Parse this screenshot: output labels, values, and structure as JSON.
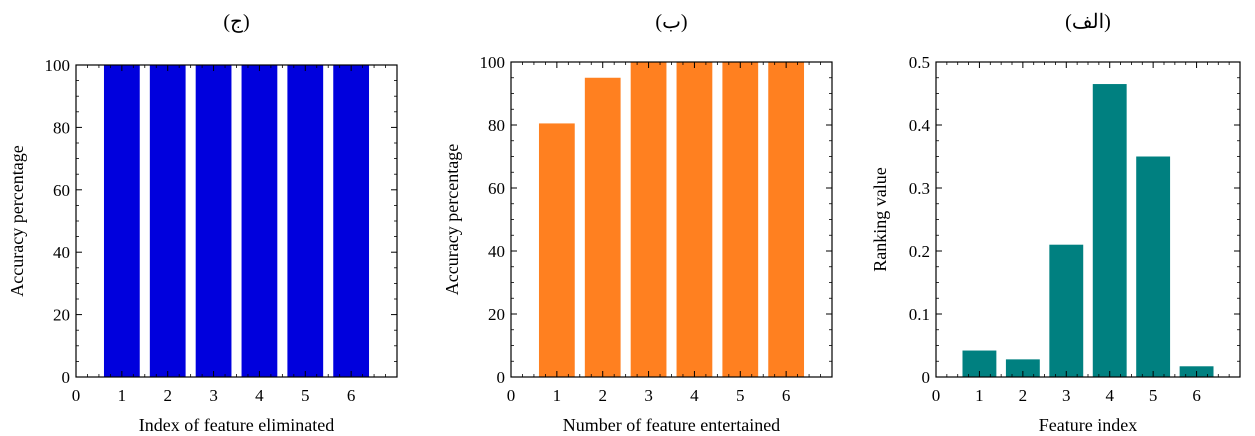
{
  "chart_data": [
    {
      "type": "bar",
      "title": "(ج)",
      "xlabel": "Index of feature eliminated",
      "ylabel": "Accuracy percentage",
      "categories": [
        1,
        2,
        3,
        4,
        5,
        6
      ],
      "values": [
        100,
        100,
        100,
        100,
        100,
        100
      ],
      "xlim": [
        0,
        7
      ],
      "ylim": [
        0,
        100
      ],
      "xticks": [
        0,
        1,
        2,
        3,
        4,
        5,
        6
      ],
      "yticks": [
        0,
        20,
        40,
        60,
        80,
        100
      ],
      "ytick_labels": [
        "0",
        "20",
        "40",
        "60",
        "80",
        "100"
      ],
      "bar_color": "#0000dd",
      "grid": false
    },
    {
      "type": "bar",
      "title": "(ب)",
      "xlabel": "Number of feature entertained",
      "ylabel": "Accuracy percentage",
      "categories": [
        1,
        2,
        3,
        4,
        5,
        6
      ],
      "values": [
        80.5,
        95,
        100,
        100,
        100,
        100
      ],
      "xlim": [
        0,
        7
      ],
      "ylim": [
        0,
        100
      ],
      "xticks": [
        0,
        1,
        2,
        3,
        4,
        5,
        6
      ],
      "yticks": [
        0,
        20,
        40,
        60,
        80,
        100
      ],
      "ytick_labels": [
        "0",
        "20",
        "40",
        "60",
        "80",
        "100"
      ],
      "bar_color": "#ff8020",
      "grid": false
    },
    {
      "type": "bar",
      "title": "(الف)",
      "xlabel": "Feature index",
      "ylabel": "Ranking value",
      "categories": [
        1,
        2,
        3,
        4,
        5,
        6
      ],
      "values": [
        0.042,
        0.028,
        0.21,
        0.465,
        0.35,
        0.017
      ],
      "xlim": [
        0,
        7
      ],
      "ylim": [
        0,
        0.5
      ],
      "xticks": [
        0,
        1,
        2,
        3,
        4,
        5,
        6
      ],
      "yticks": [
        0,
        0.1,
        0.2,
        0.3,
        0.4,
        0.5
      ],
      "ytick_labels": [
        "0",
        "0.1",
        "0.2",
        "0.3",
        "0.4",
        "0.5"
      ],
      "bar_color": "#008080",
      "grid": false
    }
  ]
}
